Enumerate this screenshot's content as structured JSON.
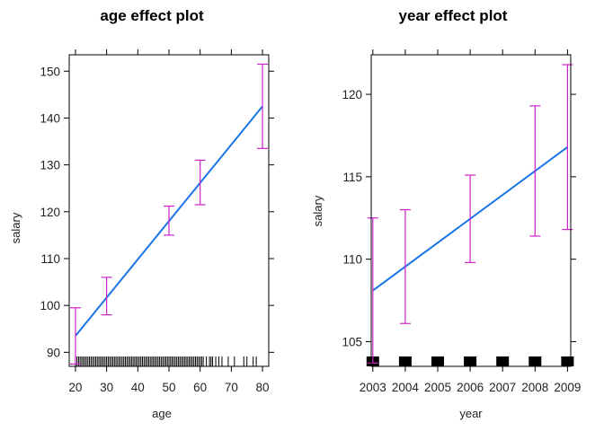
{
  "chart_data": [
    {
      "type": "line",
      "title": "age effect plot",
      "xlabel": "age",
      "ylabel": "salary",
      "xlim": [
        18,
        82
      ],
      "ylim": [
        87,
        153.5
      ],
      "xticks": [
        20,
        30,
        40,
        50,
        60,
        70,
        80
      ],
      "yticks": [
        90,
        100,
        110,
        120,
        130,
        140,
        150
      ],
      "xtick_labels": [
        "20",
        "30",
        "40",
        "50",
        "60",
        "70",
        "80"
      ],
      "ytick_labels": [
        "90",
        "100",
        "110",
        "120",
        "130",
        "140",
        "150"
      ],
      "fit": {
        "x": [
          20,
          80
        ],
        "y": [
          93.5,
          142.5
        ],
        "color": "#1a75e8"
      },
      "error_bars": {
        "x": [
          20,
          30,
          50,
          60,
          80
        ],
        "lower": [
          87.5,
          98,
          115,
          121.5,
          133.5
        ],
        "upper": [
          99.5,
          106,
          121.2,
          131,
          151.5
        ],
        "color": "#cc22cc"
      },
      "rug": [
        20,
        20.5,
        21,
        21.5,
        22,
        22.5,
        23,
        23.5,
        24,
        24.5,
        25,
        25.5,
        26,
        26.5,
        27,
        27.5,
        28,
        28.5,
        29,
        29.5,
        30,
        30.5,
        31,
        31.5,
        32,
        32.5,
        33,
        33.5,
        34,
        34.5,
        35,
        35.5,
        36,
        36.5,
        37,
        37.5,
        38,
        38.5,
        39,
        39.5,
        40,
        40.5,
        41,
        41.5,
        42,
        42.5,
        43,
        43.5,
        44,
        44.5,
        45,
        45.5,
        46,
        46.5,
        47,
        47.5,
        48,
        48.5,
        49,
        49.5,
        50,
        50.5,
        51,
        51.5,
        52,
        52.5,
        53,
        53.5,
        54,
        54.5,
        55,
        55.5,
        56,
        56.5,
        57,
        57.5,
        58,
        58.5,
        59,
        59.5,
        60,
        60.5,
        61,
        62,
        63,
        63.5,
        64,
        65,
        66,
        67,
        69,
        71,
        74,
        75,
        77,
        78
      ]
    },
    {
      "type": "line",
      "title": "year effect plot",
      "xlabel": "year",
      "ylabel": "salary",
      "xlim": [
        2002.95,
        2009.1
      ],
      "ylim": [
        103.5,
        122.4
      ],
      "xticks": [
        2003,
        2004,
        2005,
        2006,
        2007,
        2008,
        2009
      ],
      "yticks": [
        105,
        110,
        115,
        120
      ],
      "xtick_labels": [
        "2003",
        "2004",
        "2005",
        "2006",
        "2007",
        "2008",
        "2009"
      ],
      "ytick_labels": [
        "105",
        "110",
        "115",
        "120"
      ],
      "fit": {
        "x": [
          2003,
          2009
        ],
        "y": [
          108.1,
          116.8
        ],
        "color": "#1a75e8"
      },
      "error_bars": {
        "x": [
          2003,
          2004,
          2006,
          2008,
          2009
        ],
        "lower": [
          103.7,
          106.1,
          109.8,
          111.4,
          111.8
        ],
        "upper": [
          112.5,
          113,
          115.1,
          119.3,
          121.8
        ],
        "color": "#cc22cc"
      },
      "rug_boxes": [
        2003,
        2004,
        2005,
        2006,
        2007,
        2008,
        2009
      ]
    }
  ]
}
